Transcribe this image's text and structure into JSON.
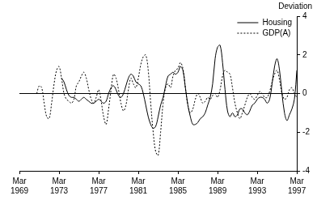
{
  "chart_data": {
    "type": "line",
    "title": "Deviation",
    "categories": [
      "Mar 1969",
      null,
      null,
      null,
      null,
      null,
      null,
      null,
      null,
      null,
      null,
      null,
      null,
      null,
      null,
      null,
      "Mar 1973",
      null,
      null,
      null,
      null,
      null,
      null,
      null,
      null,
      null,
      null,
      null,
      null,
      null,
      null,
      null,
      "Mar 1977",
      null,
      null,
      null,
      null,
      null,
      null,
      null,
      null,
      null,
      null,
      null,
      null,
      null,
      null,
      null,
      "Mar 1981",
      null,
      null,
      null,
      null,
      null,
      null,
      null,
      null,
      null,
      null,
      null,
      null,
      null,
      null,
      null,
      "Mar 1985",
      null,
      null,
      null,
      null,
      null,
      null,
      null,
      null,
      null,
      null,
      null,
      null,
      null,
      null,
      null,
      "Mar 1989",
      null,
      null,
      null,
      null,
      null,
      null,
      null,
      null,
      null,
      null,
      null,
      null,
      null,
      null,
      null,
      "Mar 1993",
      null,
      null,
      null,
      null,
      null,
      null,
      null,
      null,
      null,
      null,
      null,
      null,
      null,
      null,
      null,
      "Mar 1997"
    ],
    "series": [
      {
        "name": "Housing",
        "color": "#000000",
        "line_style": "solid",
        "values": [
          null,
          null,
          null,
          null,
          null,
          null,
          null,
          null,
          null,
          null,
          null,
          null,
          null,
          null,
          null,
          null,
          null,
          0.8,
          0.6,
          0.2,
          -0.1,
          -0.2,
          -0.2,
          -0.3,
          -0.4,
          -0.3,
          -0.2,
          -0.3,
          -0.4,
          -0.5,
          -0.5,
          -0.4,
          -0.3,
          -0.4,
          -0.5,
          -0.4,
          0.0,
          0.3,
          0.4,
          0.2,
          -0.1,
          -0.2,
          0.0,
          0.4,
          0.8,
          1.0,
          0.9,
          0.6,
          0.5,
          0.4,
          0.0,
          -0.6,
          -1.2,
          -1.6,
          -1.8,
          -1.7,
          -1.2,
          -0.6,
          -0.2,
          0.4,
          0.9,
          1.0,
          1.1,
          1.0,
          1.1,
          1.4,
          1.2,
          0.3,
          -0.6,
          -1.2,
          -1.6,
          -1.6,
          -1.5,
          -1.3,
          -1.2,
          -1.0,
          -0.6,
          -0.2,
          0.5,
          1.8,
          2.4,
          2.5,
          1.6,
          0.2,
          -0.9,
          -1.2,
          -1.0,
          -1.2,
          -1.1,
          -0.8,
          -0.8,
          -1.0,
          -1.1,
          -0.9,
          -0.6,
          -0.5,
          -0.3,
          -0.2,
          -0.2,
          -0.3,
          -0.5,
          -0.3,
          0.5,
          1.4,
          1.8,
          1.2,
          0.0,
          -1.0,
          -1.4,
          -1.1,
          -0.8,
          -0.3,
          1.2
        ]
      },
      {
        "name": "GDP(A)",
        "color": "#000000",
        "line_style": "dotted",
        "values": [
          null,
          null,
          null,
          null,
          null,
          null,
          null,
          0.0,
          0.4,
          0.3,
          -0.5,
          -1.2,
          -1.3,
          -0.5,
          0.5,
          1.2,
          1.4,
          0.8,
          0.0,
          -0.3,
          -0.4,
          -0.5,
          -0.3,
          0.4,
          0.6,
          0.9,
          1.1,
          0.8,
          0.2,
          -0.3,
          -0.5,
          -0.2,
          0.2,
          -0.4,
          -1.2,
          -1.6,
          -0.8,
          0.2,
          1.0,
          0.8,
          0.2,
          -0.5,
          -0.9,
          -0.6,
          0.2,
          0.8,
          0.5,
          0.3,
          0.8,
          1.5,
          1.9,
          2.0,
          1.2,
          -0.5,
          -2.0,
          -3.0,
          -3.2,
          -2.0,
          -0.5,
          0.3,
          0.5,
          0.3,
          0.9,
          1.2,
          1.3,
          1.6,
          1.3,
          0.3,
          -0.6,
          -1.0,
          -0.8,
          -0.3,
          0.0,
          -0.2,
          -0.5,
          -0.4,
          -0.2,
          -0.3,
          -0.1,
          0.0,
          -0.2,
          0.2,
          0.9,
          1.2,
          1.1,
          1.0,
          0.3,
          -0.5,
          -1.0,
          -1.3,
          -1.0,
          -0.6,
          -0.2,
          0.0,
          -0.2,
          -0.3,
          -0.1,
          0.1,
          0.0,
          -0.2,
          -0.2,
          0.1,
          0.6,
          1.0,
          1.2,
          0.7,
          0.0,
          -0.3,
          -0.2,
          0.2,
          0.3,
          0.0,
          -0.2
        ]
      }
    ],
    "ylim": [
      -4,
      4
    ],
    "yticks": [
      -4,
      -2,
      0,
      2,
      4
    ],
    "grid": false,
    "legend": "upper right"
  }
}
